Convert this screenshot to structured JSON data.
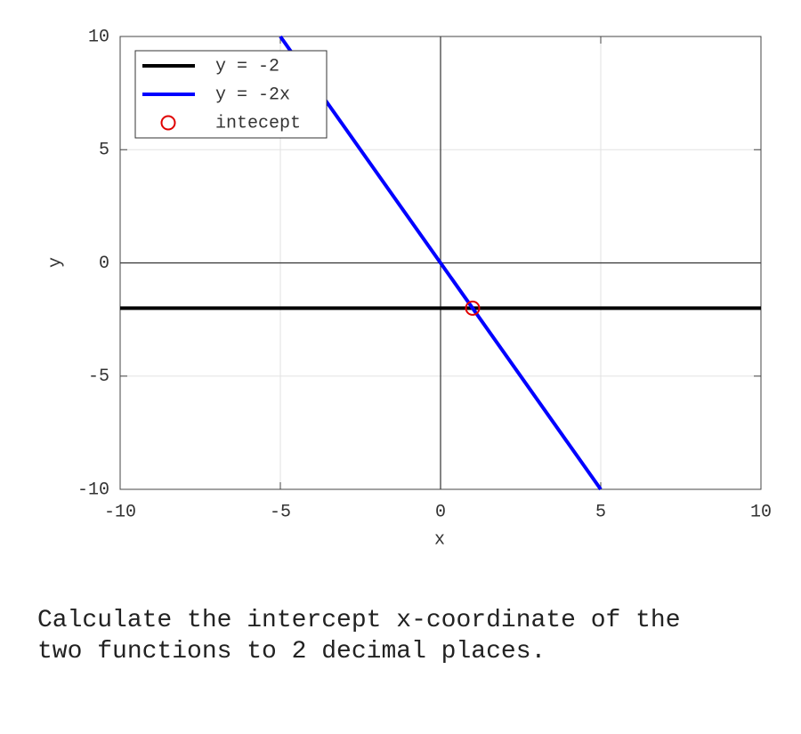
{
  "chart_data": {
    "type": "line",
    "x_label": "x",
    "y_label": "y",
    "xlim": [
      -10,
      10
    ],
    "ylim": [
      -10,
      10
    ],
    "xticks": [
      -10,
      -5,
      0,
      5,
      10
    ],
    "yticks": [
      -10,
      -5,
      0,
      5,
      10
    ],
    "grid": true,
    "legend": "upper left",
    "series": [
      {
        "name": "y = -2",
        "color": "#000000",
        "style": "line",
        "x": [
          -10,
          10
        ],
        "values": [
          -2,
          -2
        ]
      },
      {
        "name": "y = -2x",
        "color": "#0000ff",
        "style": "line",
        "x": [
          -5,
          5
        ],
        "values": [
          10,
          -10
        ]
      },
      {
        "name": "intecept",
        "color": "#e00000",
        "style": "marker",
        "x": [
          1
        ],
        "values": [
          -2
        ]
      }
    ]
  },
  "question": "Calculate the intercept x-coordinate of the two functions to 2 decimal places."
}
